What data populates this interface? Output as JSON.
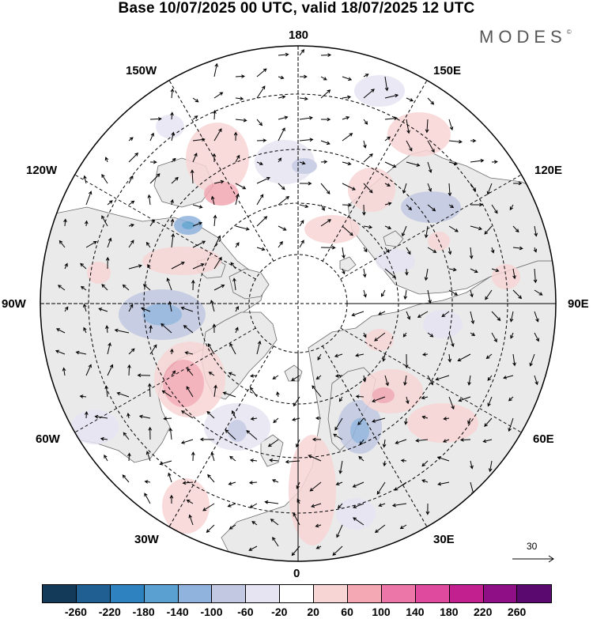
{
  "title": "Base 10/07/2025 00 UTC, valid 18/07/2025 12 UTC",
  "brand": "MODES",
  "brand_mark": "©",
  "labels": {
    "top": "180",
    "bottom": "0",
    "left": "90W",
    "right": "90E",
    "ul1": "150W",
    "ul2": "120W",
    "ur1": "150E",
    "ur2": "120E",
    "ll1": "60W",
    "ll2": "30W",
    "lr1": "60E",
    "lr2": "30E"
  },
  "vector_scale": "30",
  "colorbar": {
    "colors": [
      "#143a5a",
      "#1f5f91",
      "#2d82bf",
      "#5aa0d0",
      "#8fb3dc",
      "#c2c8e2",
      "#e6e4f2",
      "#ffffff",
      "#f8d5d5",
      "#f3a8b3",
      "#ec76a7",
      "#df4a9e",
      "#c1208e",
      "#8e0f86",
      "#5a0a6e"
    ],
    "ticks": [
      "-260",
      "-220",
      "-180",
      "-140",
      "-100",
      "-60",
      "-20",
      "20",
      "60",
      "100",
      "140",
      "180",
      "220",
      "260"
    ]
  },
  "map": {
    "projection": "north polar stereographic",
    "land_color": "#eaeaea",
    "coastline_color": "#555555"
  }
}
